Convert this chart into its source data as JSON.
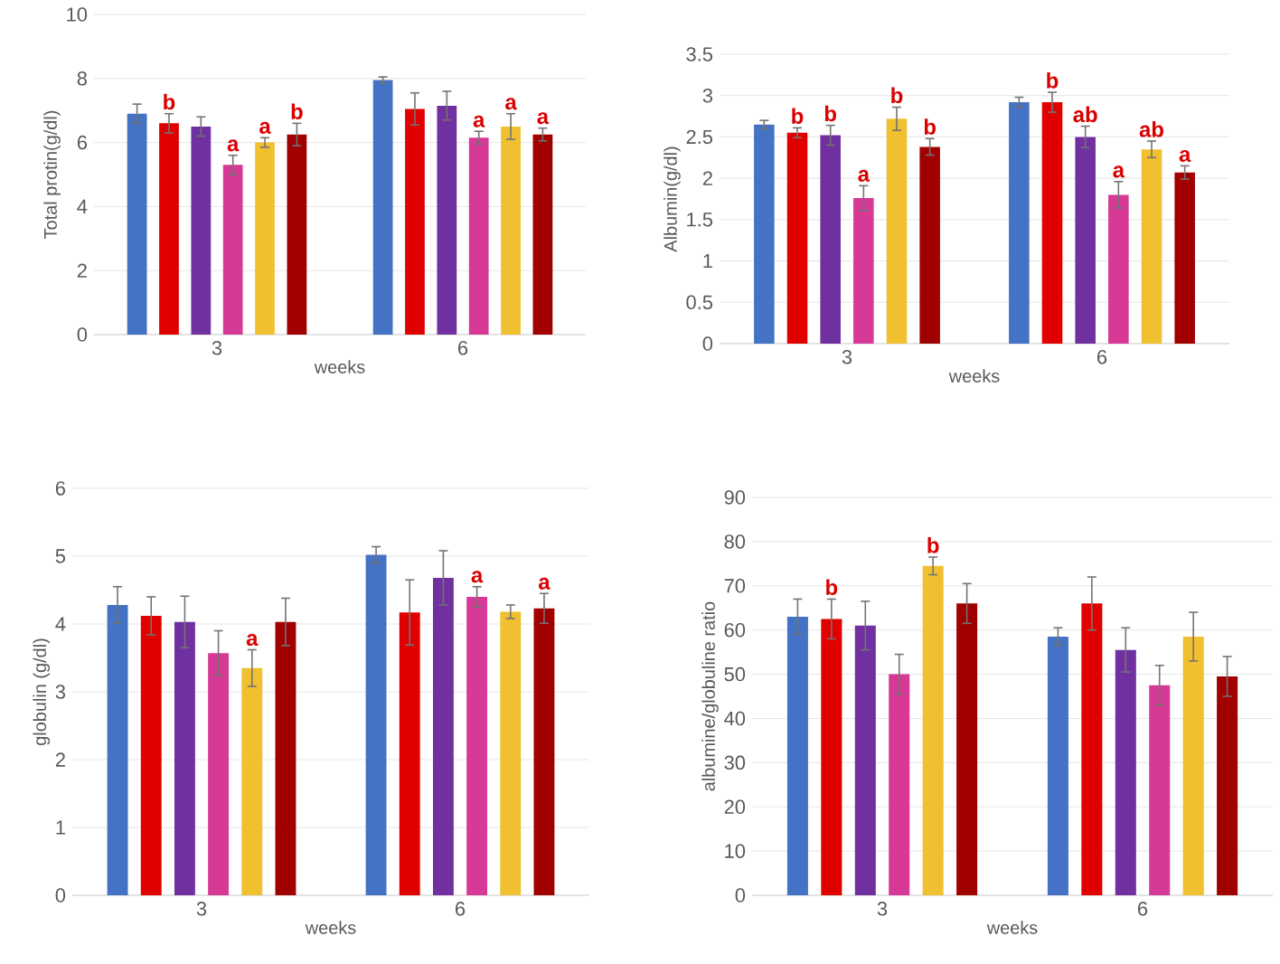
{
  "chart_data": [
    {
      "type": "bar",
      "ylabel": "Total protin(g/dl)",
      "xlabel": "weeks",
      "categories": [
        "3",
        "6"
      ],
      "ylim": [
        0,
        10
      ],
      "yticks": [
        0,
        2,
        4,
        6,
        8,
        10
      ],
      "grid": "y",
      "series": [
        {
          "color": "#4472c4",
          "values": [
            6.9,
            7.95
          ],
          "errors": [
            0.3,
            0.1
          ]
        },
        {
          "color": "#e00000",
          "values": [
            6.6,
            7.05
          ],
          "errors": [
            0.3,
            0.5
          ],
          "value_labels": [
            "b",
            null
          ]
        },
        {
          "color": "#7030a0",
          "values": [
            6.5,
            7.15
          ],
          "errors": [
            0.3,
            0.45
          ]
        },
        {
          "color": "#d63a96",
          "values": [
            5.3,
            6.15
          ],
          "errors": [
            0.3,
            0.2
          ],
          "value_labels": [
            "a",
            "a"
          ]
        },
        {
          "color": "#f0c030",
          "values": [
            6.0,
            6.5
          ],
          "errors": [
            0.15,
            0.4
          ],
          "value_labels": [
            "a",
            "a"
          ]
        },
        {
          "color": "#a00000",
          "values": [
            6.25,
            6.25
          ],
          "errors": [
            0.35,
            0.2
          ],
          "value_labels": [
            "b",
            "a"
          ]
        }
      ]
    },
    {
      "type": "bar",
      "ylabel": "Albumin(g/dl)",
      "xlabel": "weeks",
      "categories": [
        "3",
        "6"
      ],
      "ylim": [
        0,
        3.5
      ],
      "yticks": [
        0,
        0.5,
        1,
        1.5,
        2,
        2.5,
        3,
        3.5
      ],
      "grid": "y",
      "series": [
        {
          "color": "#4472c4",
          "values": [
            2.65,
            2.92
          ],
          "errors": [
            0.05,
            0.06
          ]
        },
        {
          "color": "#e00000",
          "values": [
            2.55,
            2.92
          ],
          "errors": [
            0.06,
            0.12
          ],
          "value_labels": [
            "b",
            "b"
          ]
        },
        {
          "color": "#7030a0",
          "values": [
            2.52,
            2.5
          ],
          "errors": [
            0.12,
            0.13
          ],
          "value_labels": [
            "b",
            "ab"
          ]
        },
        {
          "color": "#d63a96",
          "values": [
            1.76,
            1.8
          ],
          "errors": [
            0.15,
            0.16
          ],
          "value_labels": [
            "a",
            "a"
          ]
        },
        {
          "color": "#f0c030",
          "values": [
            2.72,
            2.35
          ],
          "errors": [
            0.14,
            0.1
          ],
          "value_labels": [
            "b",
            "ab"
          ]
        },
        {
          "color": "#a00000",
          "values": [
            2.38,
            2.07
          ],
          "errors": [
            0.1,
            0.08
          ],
          "value_labels": [
            "b",
            "a"
          ]
        }
      ]
    },
    {
      "type": "bar",
      "ylabel": "globulin (g/dl)",
      "xlabel": "weeks",
      "categories": [
        "3",
        "6"
      ],
      "ylim": [
        0,
        6
      ],
      "yticks": [
        0,
        1,
        2,
        3,
        4,
        5,
        6
      ],
      "grid": "y",
      "series": [
        {
          "color": "#4472c4",
          "values": [
            4.28,
            5.02
          ],
          "errors": [
            0.27,
            0.12
          ]
        },
        {
          "color": "#e00000",
          "values": [
            4.12,
            4.17
          ],
          "errors": [
            0.28,
            0.48
          ]
        },
        {
          "color": "#7030a0",
          "values": [
            4.03,
            4.68
          ],
          "errors": [
            0.38,
            0.4
          ]
        },
        {
          "color": "#d63a96",
          "values": [
            3.57,
            4.4
          ],
          "errors": [
            0.33,
            0.15
          ],
          "value_labels": [
            null,
            "a"
          ]
        },
        {
          "color": "#f0c030",
          "values": [
            3.35,
            4.18
          ],
          "errors": [
            0.27,
            0.1
          ],
          "value_labels": [
            "a",
            null
          ]
        },
        {
          "color": "#a00000",
          "values": [
            4.03,
            4.23
          ],
          "errors": [
            0.35,
            0.22
          ],
          "value_labels": [
            null,
            "a"
          ]
        }
      ]
    },
    {
      "type": "bar",
      "ylabel": "albumine/globuline ratio",
      "xlabel": "weeks",
      "categories": [
        "3",
        "6"
      ],
      "ylim": [
        0,
        90
      ],
      "yticks": [
        0,
        10,
        20,
        30,
        40,
        50,
        60,
        70,
        80,
        90
      ],
      "grid": "y",
      "series": [
        {
          "color": "#4472c4",
          "values": [
            63,
            58.5
          ],
          "errors": [
            4,
            2
          ]
        },
        {
          "color": "#e00000",
          "values": [
            62.5,
            66
          ],
          "errors": [
            4.5,
            6
          ],
          "value_labels": [
            "b",
            null
          ]
        },
        {
          "color": "#7030a0",
          "values": [
            61,
            55.5
          ],
          "errors": [
            5.5,
            5
          ]
        },
        {
          "color": "#d63a96",
          "values": [
            50,
            47.5
          ],
          "errors": [
            4.5,
            4.5
          ]
        },
        {
          "color": "#f0c030",
          "values": [
            74.5,
            58.5
          ],
          "errors": [
            2,
            5.5
          ],
          "value_labels": [
            "b",
            null
          ]
        },
        {
          "color": "#a00000",
          "values": [
            66,
            49.5
          ],
          "errors": [
            4.5,
            4.5
          ]
        }
      ]
    }
  ]
}
